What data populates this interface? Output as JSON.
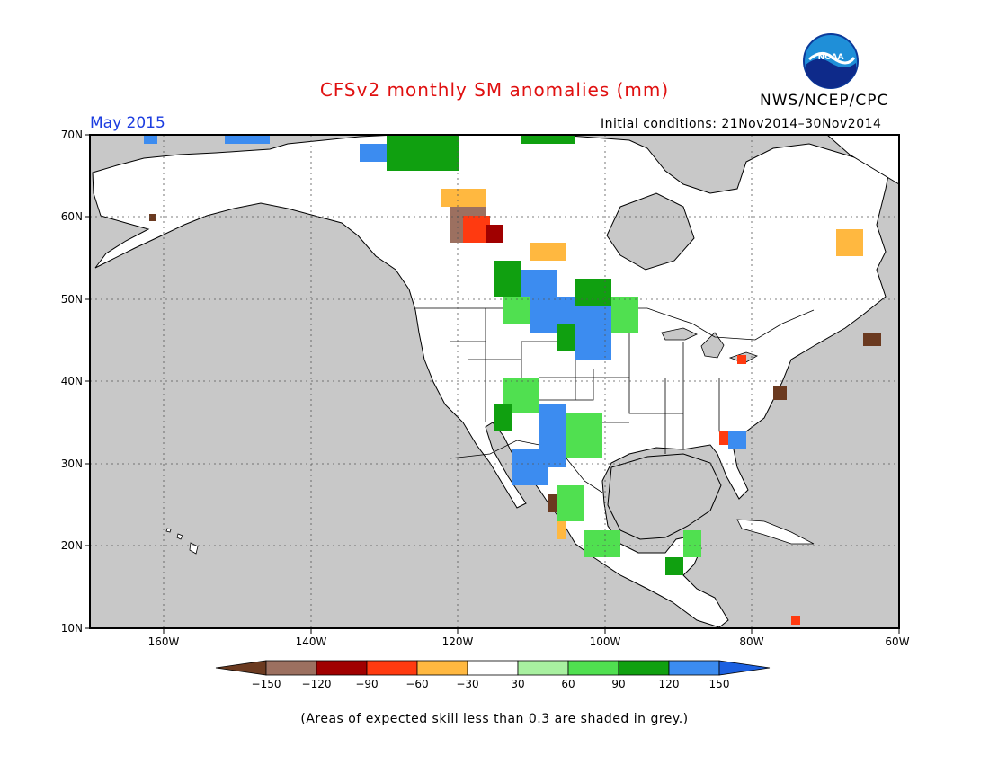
{
  "header": {
    "title": "CFSv2 monthly SM anomalies (mm)",
    "agency": "NWS/NCEP/CPC",
    "logo_text": "NOAA",
    "forecast_month": "May 2015",
    "initial_conditions": "Initial conditions: 21Nov2014–30Nov2014"
  },
  "map": {
    "lat_labels": [
      "70N",
      "60N",
      "50N",
      "40N",
      "30N",
      "20N",
      "10N"
    ],
    "lon_labels": [
      "160W",
      "140W",
      "120W",
      "100W",
      "80W",
      "60W"
    ],
    "ocean_color": "#c8c8c8",
    "land_color": "#ffffff"
  },
  "colorbar": {
    "labels": [
      "−150",
      "−120",
      "−90",
      "−60",
      "−30",
      "30",
      "60",
      "90",
      "120",
      "150"
    ],
    "colors": [
      "#6b3a20",
      "#9c7060",
      "#a00000",
      "#ff3a10",
      "#ffb840",
      "#ffffff",
      "#a8f0a0",
      "#50e050",
      "#10a010",
      "#3c8cf0",
      "#1c60e0"
    ]
  },
  "footnote": "(Areas of expected skill less than 0.3 are shaded in grey.)"
}
